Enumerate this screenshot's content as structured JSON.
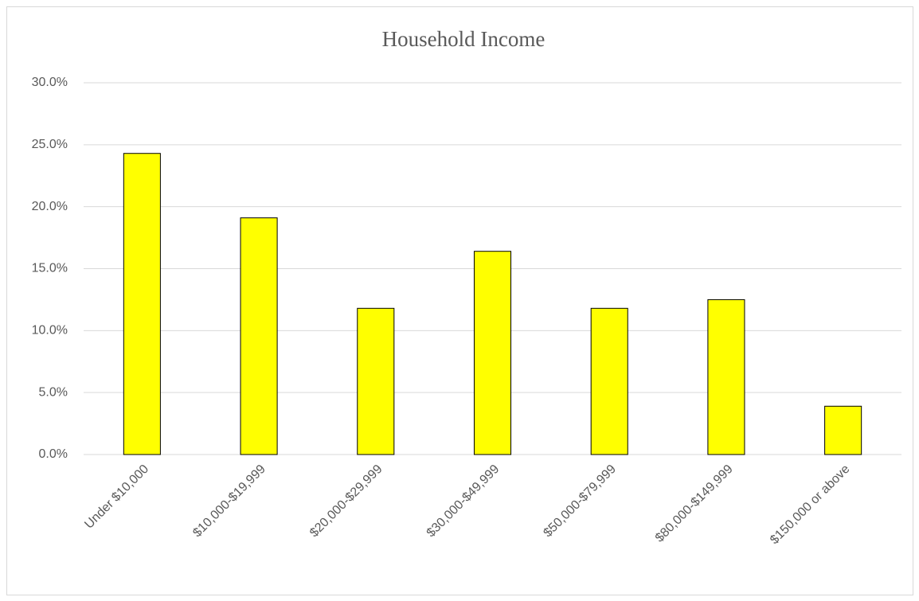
{
  "chart_data": {
    "type": "bar",
    "title": "Household Income",
    "categories": [
      "Under $10,000",
      "$10,000-$19,999",
      "$20,000-$29,999",
      "$30,000-$49,999",
      "$50,000-$79,999",
      "$80,000-$149,999",
      "$150,000 or above"
    ],
    "values": [
      24.3,
      19.1,
      11.8,
      16.4,
      11.8,
      12.5,
      3.9
    ],
    "color": "#ffff00",
    "ylim": [
      0,
      30
    ],
    "yticks": [
      {
        "value": 0,
        "label": "0.0%"
      },
      {
        "value": 5,
        "label": "5.0%"
      },
      {
        "value": 10,
        "label": "10.0%"
      },
      {
        "value": 15,
        "label": "15.0%"
      },
      {
        "value": 20,
        "label": "20.0%"
      },
      {
        "value": 25,
        "label": "25.0%"
      },
      {
        "value": 30,
        "label": "30.0%"
      }
    ],
    "grid": true
  }
}
